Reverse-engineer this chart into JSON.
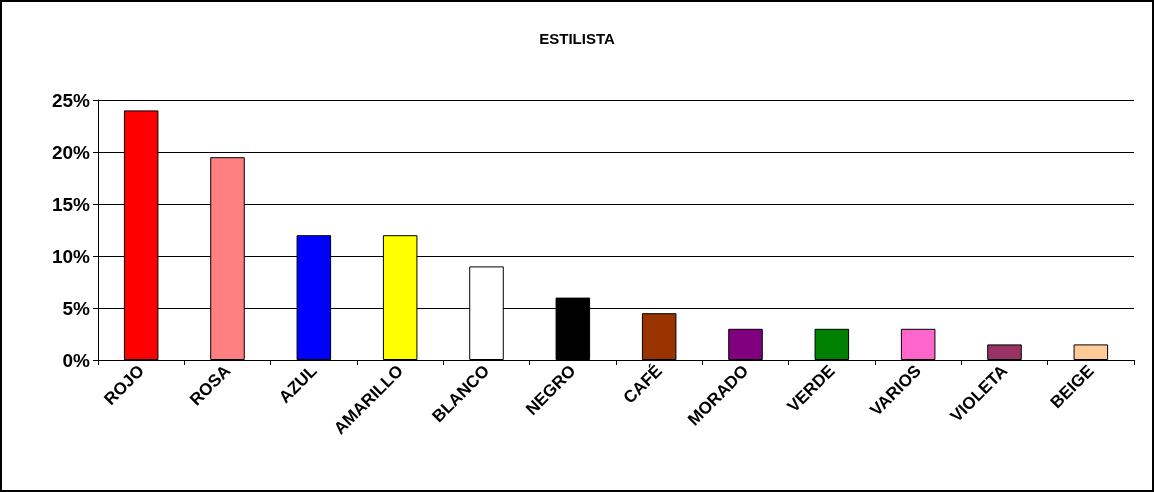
{
  "chart_data": {
    "type": "bar",
    "title": "ESTILISTA",
    "categories": [
      "ROJO",
      "ROSA",
      "AZUL",
      "AMARILLO",
      "BLANCO",
      "NEGRO",
      "CAFÉ",
      "MORADO",
      "VERDE",
      "VARIOS",
      "VIOLETA",
      "BEIGE"
    ],
    "values": [
      24,
      19.5,
      12,
      12,
      9,
      6,
      4.5,
      3,
      3,
      3,
      1.5,
      1.5
    ],
    "colors": [
      "#ff0000",
      "#ff8080",
      "#0000ff",
      "#ffff00",
      "#ffffff",
      "#000000",
      "#993300",
      "#800080",
      "#008000",
      "#ff66cc",
      "#993366",
      "#ffcc99"
    ],
    "ylim": [
      0,
      25
    ],
    "yticks": [
      {
        "value": 0,
        "label": "0%"
      },
      {
        "value": 5,
        "label": "5%"
      },
      {
        "value": 10,
        "label": "10%"
      },
      {
        "value": 15,
        "label": "15%"
      },
      {
        "value": 20,
        "label": "20%"
      },
      {
        "value": 25,
        "label": "25%"
      }
    ],
    "grid": true
  }
}
